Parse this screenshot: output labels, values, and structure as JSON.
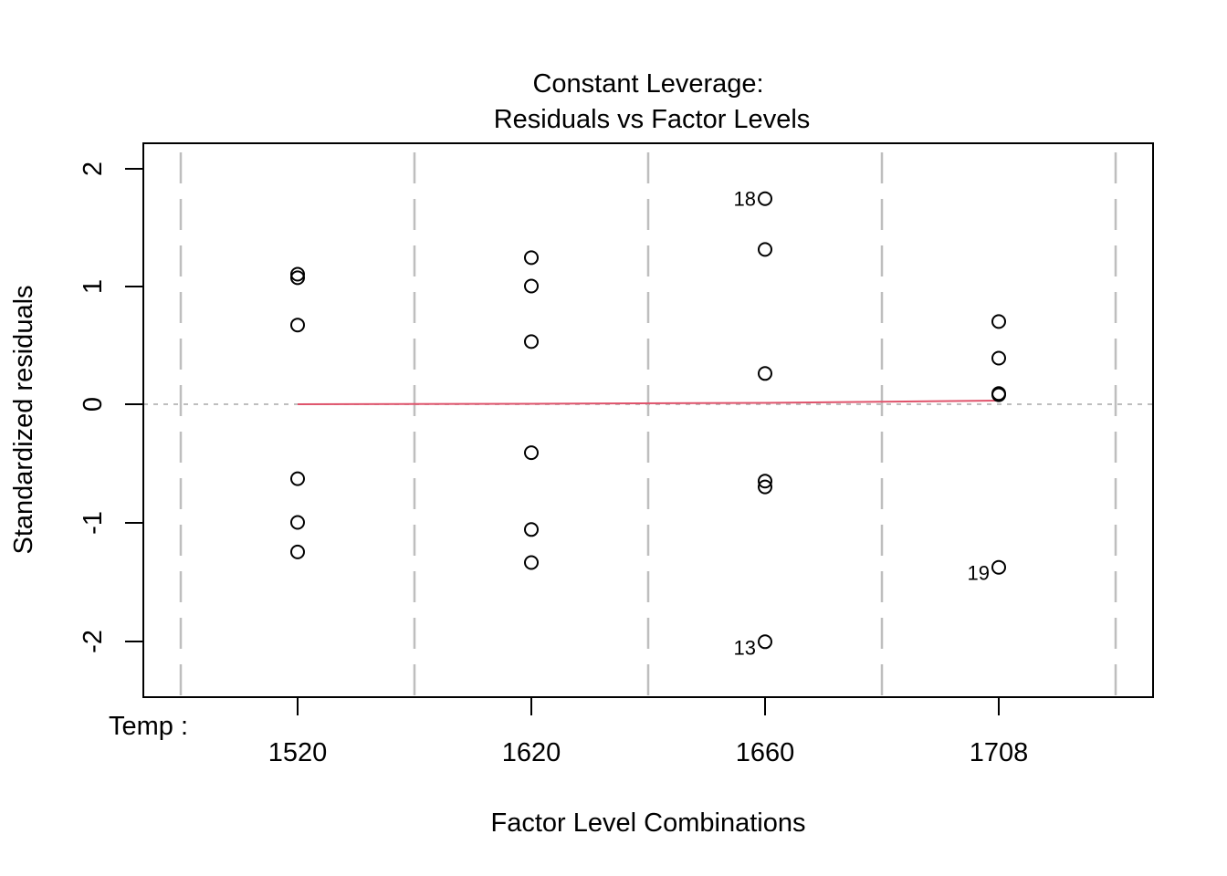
{
  "chart_data": {
    "type": "scatter",
    "title": "Constant Leverage:",
    "subtitle": "Residuals vs Factor Levels",
    "xlabel": "Factor Level Combinations",
    "ylabel": "Standardized residuals",
    "factor_label": "Temp :",
    "categories": [
      "1520",
      "1620",
      "1660",
      "1708"
    ],
    "yticks": [
      "2",
      "1",
      "0",
      "-1",
      "-2"
    ],
    "ylim": [
      -2.5,
      2.2
    ],
    "grid": false,
    "reference_line_y": 0,
    "colors": {
      "points": "#000000",
      "smoother": "#DF536B",
      "dividers": "#BEBEBE",
      "reference": "#BEBEBE"
    },
    "series": [
      {
        "name": "1520",
        "values": [
          1.1,
          1.07,
          0.67,
          -0.63,
          -1.0,
          -1.25
        ]
      },
      {
        "name": "1620",
        "values": [
          1.24,
          1.0,
          0.53,
          -0.41,
          -1.06,
          -1.34
        ]
      },
      {
        "name": "1660",
        "values": [
          1.74,
          1.31,
          0.26,
          -0.65,
          -0.7,
          -2.01
        ]
      },
      {
        "name": "1708",
        "values": [
          0.7,
          0.39,
          0.09,
          0.08,
          -1.38
        ]
      }
    ],
    "smoother": {
      "x": [
        "1520",
        "1620",
        "1660",
        "1708"
      ],
      "values": [
        0.0,
        0.005,
        0.01,
        0.03
      ]
    },
    "annotations": [
      {
        "label": "18",
        "category": "1660",
        "y": 1.74
      },
      {
        "label": "13",
        "category": "1660",
        "y": -2.01
      },
      {
        "label": "19",
        "category": "1708",
        "y": -1.38
      }
    ]
  }
}
